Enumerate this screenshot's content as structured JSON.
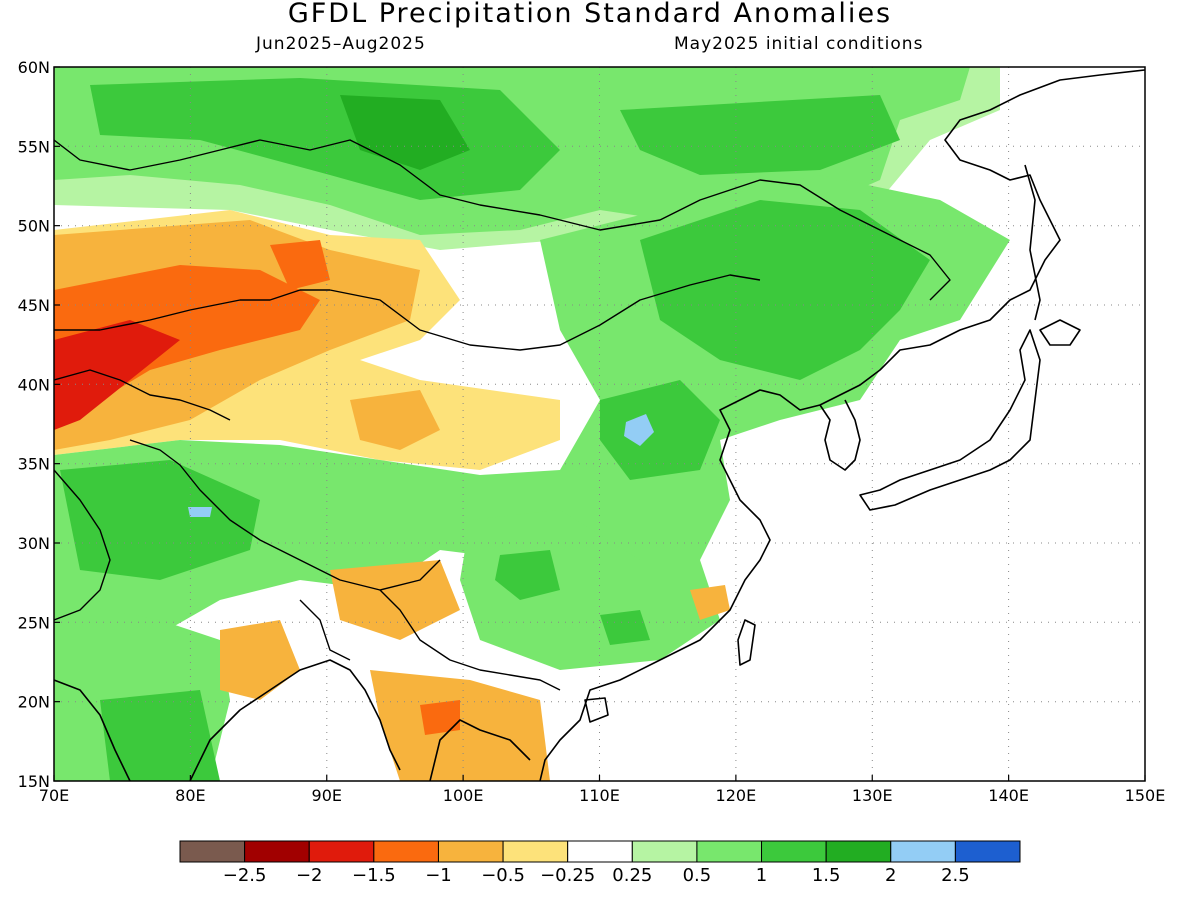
{
  "header": {
    "title": "GFDL Precipitation Standard Anomalies",
    "period": "Jun2025–Aug2025",
    "init": "May2025 initial conditions"
  },
  "map": {
    "lon_range": [
      70,
      150
    ],
    "lat_range": [
      15,
      60
    ],
    "lon_ticks": [
      "70E",
      "80E",
      "90E",
      "100E",
      "110E",
      "120E",
      "130E",
      "140E",
      "150E"
    ],
    "lat_ticks": [
      "15N",
      "20N",
      "25N",
      "30N",
      "35N",
      "40N",
      "45N",
      "50N",
      "55N",
      "60N"
    ],
    "grid": "dotted"
  },
  "colorbar": {
    "colors": [
      "#7a5a4e",
      "#a10000",
      "#e01b0c",
      "#fa6a0f",
      "#f7b33d",
      "#fde27a",
      "#ffffff",
      "#b6f4a3",
      "#78e76d",
      "#3cc93c",
      "#22ad22",
      "#93cdf5",
      "#1d5fd0"
    ],
    "labels": [
      "−2.5",
      "−2",
      "−1.5",
      "−1",
      "−0.5",
      "−0.25",
      "0.25",
      "0.5",
      "1",
      "1.5",
      "2",
      "2.5"
    ]
  },
  "anomaly_regions": [
    {
      "name": "west-central-asia-dry",
      "level": -1.5
    },
    {
      "name": "tian-shan-kazakh-dry",
      "level": -1
    },
    {
      "name": "tibet-north-dry",
      "level": -0.5
    },
    {
      "name": "siberia-wet",
      "level": 1
    },
    {
      "name": "mongolia-manchuria-wet",
      "level": 1.5
    },
    {
      "name": "south-china-wet",
      "level": 1
    },
    {
      "name": "north-china-peak",
      "level": 2.5
    },
    {
      "name": "himalaya-wet",
      "level": 1.5
    },
    {
      "name": "indochina-dry",
      "level": -0.5
    }
  ]
}
